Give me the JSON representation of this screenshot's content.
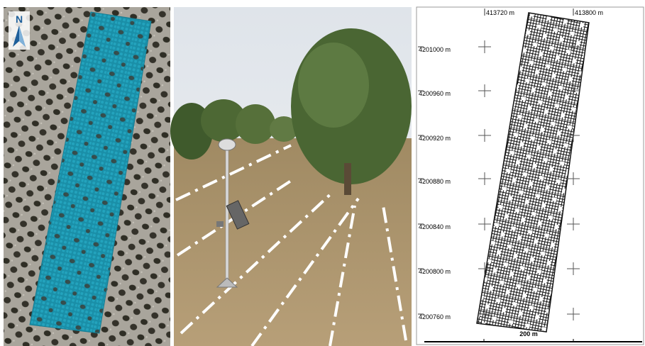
{
  "left_panel": {
    "north_label": "N"
  },
  "right_panel": {
    "x_labels": [
      "413720 m",
      "413800 m"
    ],
    "y_labels": [
      "4201000 m",
      "4200960 m",
      "4200920 m",
      "4200880 m",
      "4200840 m",
      "4200800 m",
      "4200760 m"
    ],
    "scale_label": "200 m"
  }
}
